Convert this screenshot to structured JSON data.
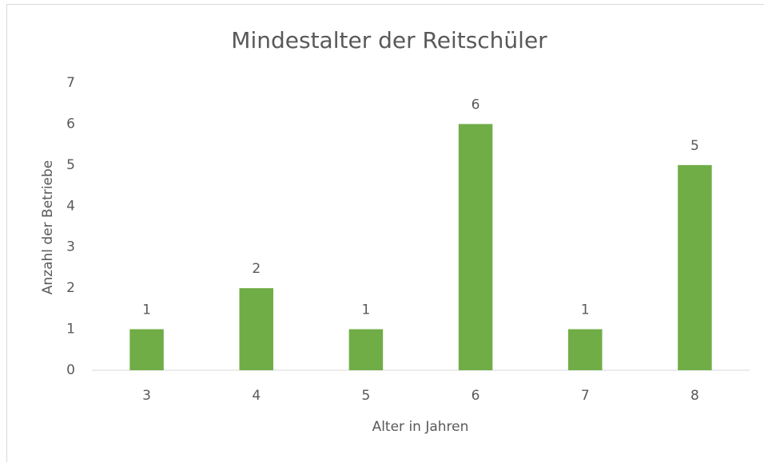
{
  "chart_data": {
    "type": "bar",
    "title": "Mindestalter der Reitschüler",
    "x_label": "Alter in Jahren",
    "y_label": "Anzahl der Betriebe",
    "categories": [
      "3",
      "4",
      "5",
      "6",
      "7",
      "8"
    ],
    "values": [
      1,
      2,
      1,
      6,
      1,
      5
    ],
    "color": "#70ad47",
    "ylim": [
      0,
      7
    ],
    "yticks": [
      0,
      1,
      2,
      3,
      4,
      5,
      6,
      7
    ],
    "grid": false
  }
}
